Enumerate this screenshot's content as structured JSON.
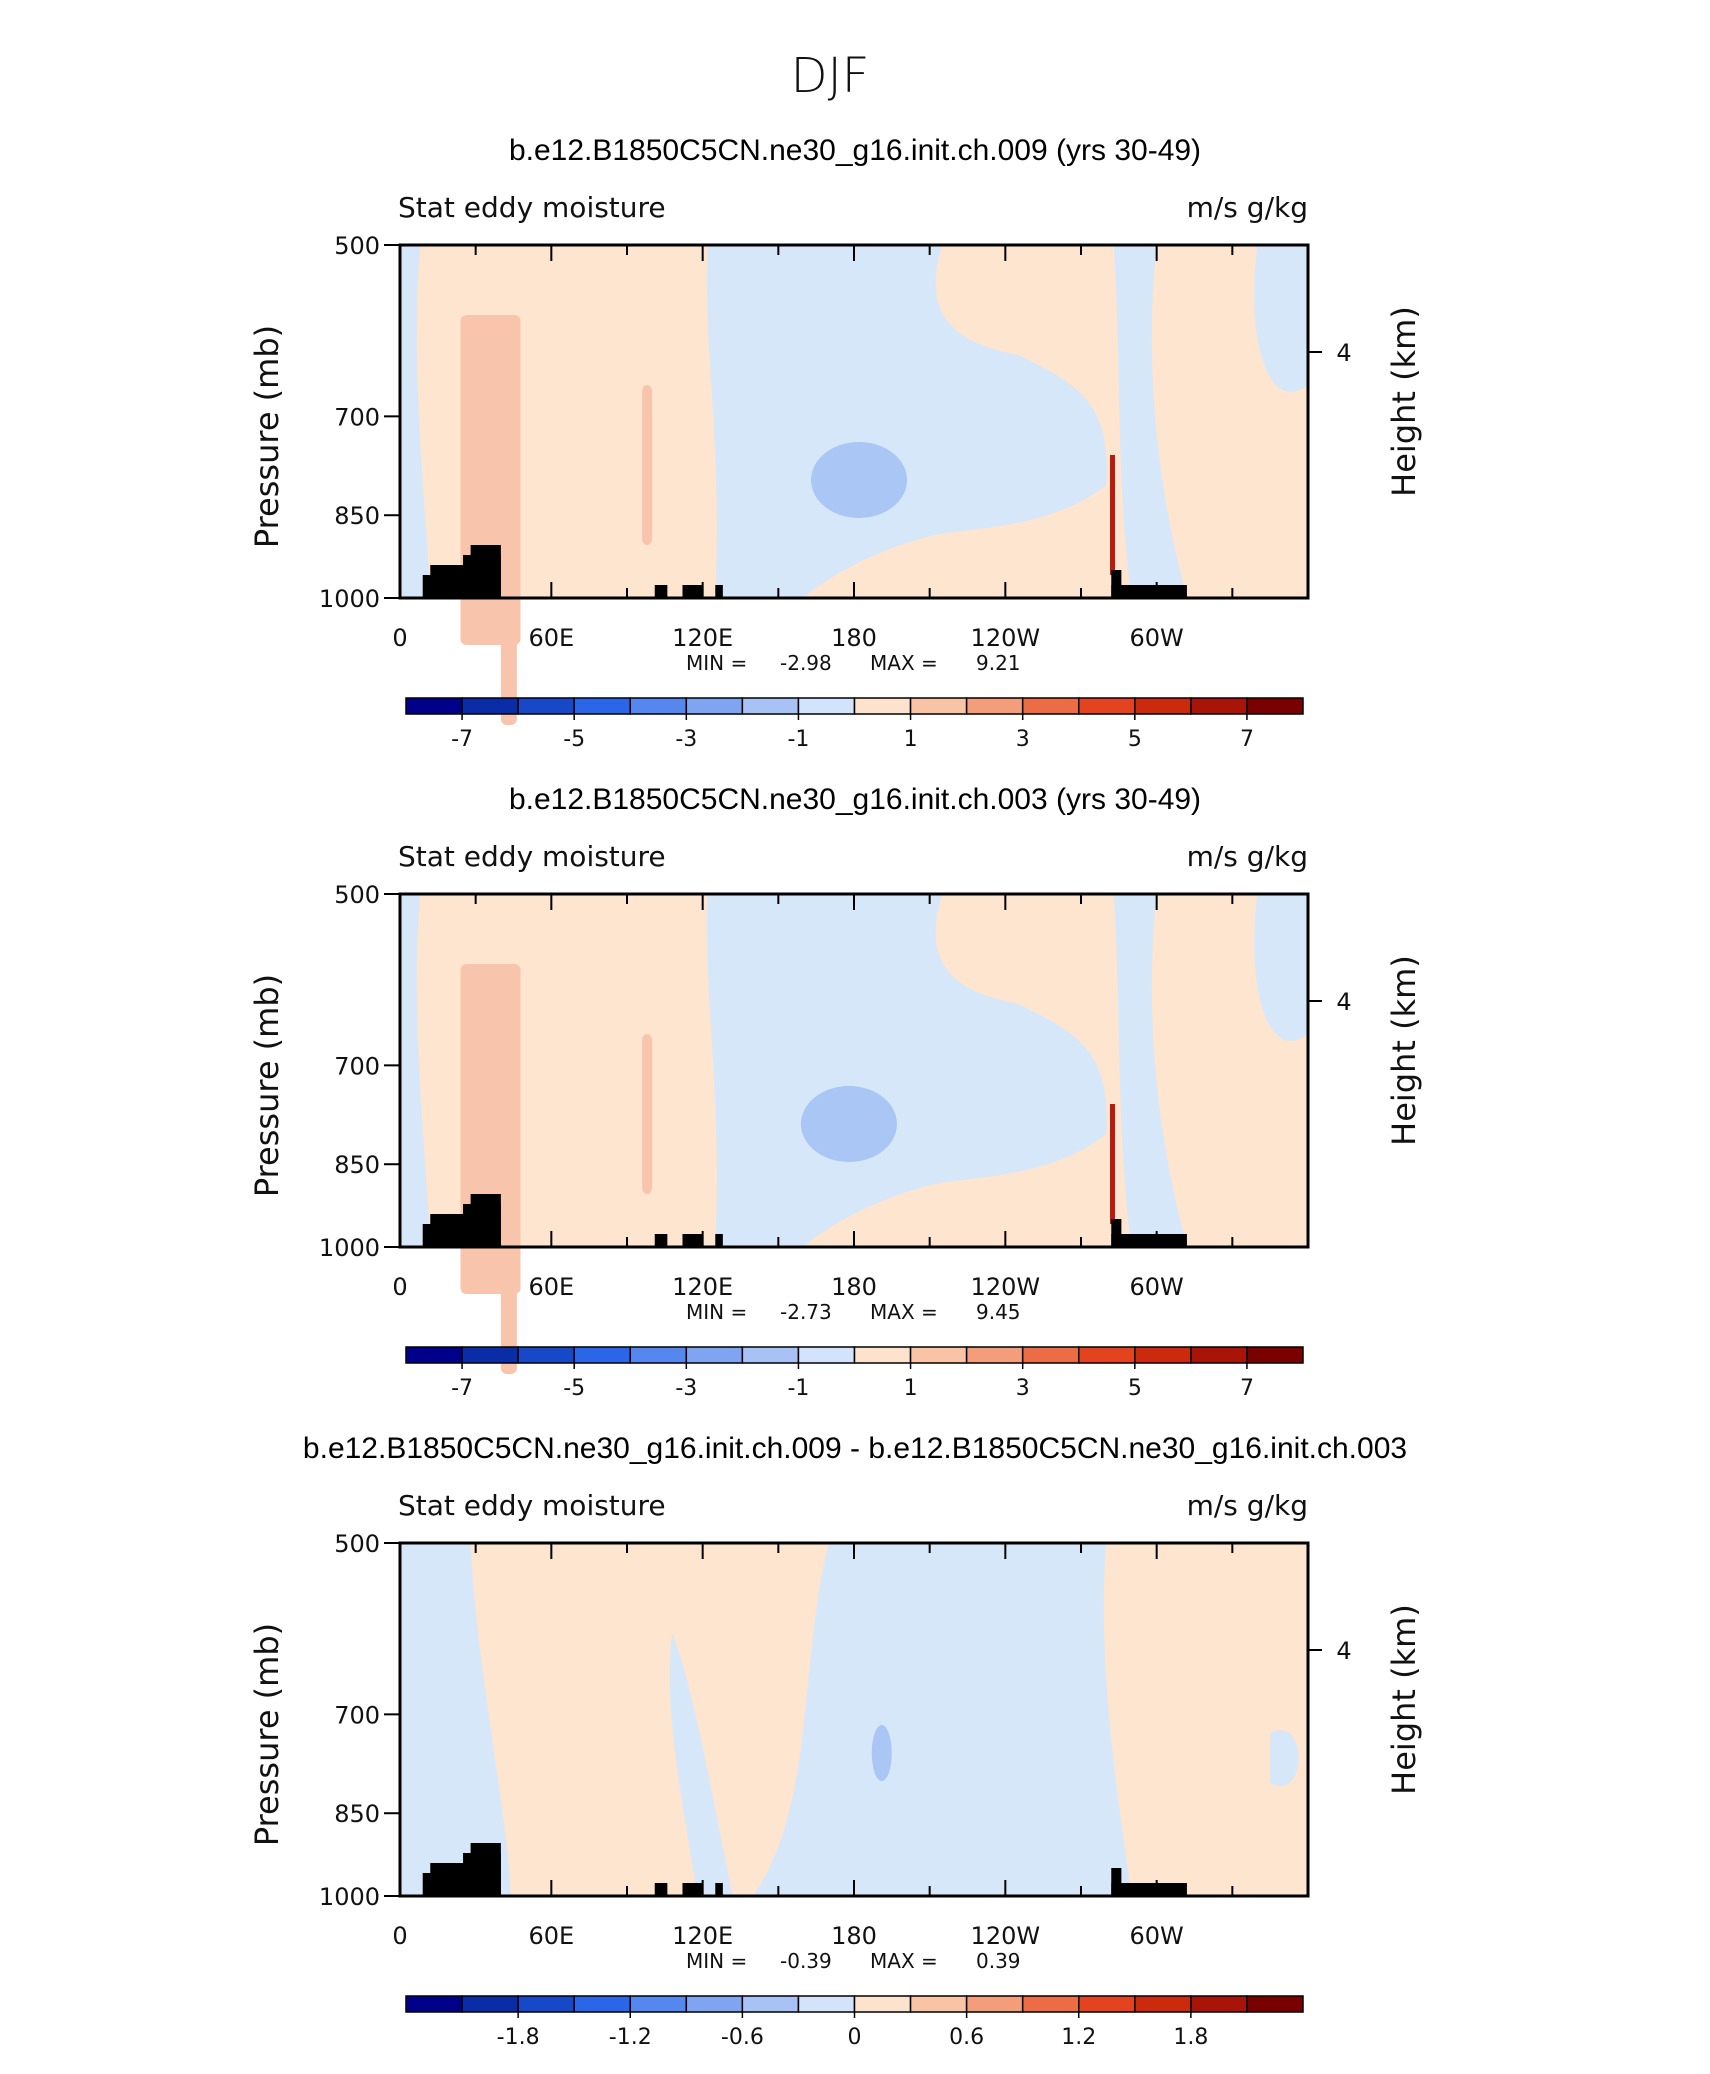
{
  "figure_title": "DJF",
  "chart_data": [
    {
      "type": "heatmap",
      "title": "b.e12.B1850C5CN.ne30_g16.init.ch.009 (yrs 30-49)",
      "left_label": "Stat eddy moisture",
      "right_label": "m/s g/kg",
      "ylabel": "Pressure (mb)",
      "y2label": "Height (km)",
      "xticks": [
        "0",
        "60E",
        "120E",
        "180",
        "120W",
        "60W"
      ],
      "xlim": [
        0,
        360
      ],
      "yticks": [
        "500",
        "700",
        "850",
        "1000"
      ],
      "y2ticks": [
        "4"
      ],
      "ylim": [
        1000,
        500
      ],
      "stats": {
        "min_label": "MIN =",
        "min": "-2.98",
        "max_label": "MAX =",
        "max": "9.21"
      },
      "colorbar": {
        "labels": [
          "-7",
          "-5",
          "-3",
          "-1",
          "1",
          "3",
          "5",
          "7"
        ],
        "levels": [
          -8,
          -7,
          -6,
          -5,
          -4,
          -3,
          -2,
          -1,
          0,
          1,
          2,
          3,
          4,
          5,
          6,
          7,
          8
        ]
      },
      "regions": [
        {
          "name": "weak-negative",
          "value": -0.5,
          "lon": [
            120,
            215
          ],
          "p": [
            500,
            1000
          ]
        },
        {
          "name": "weak-positive",
          "value": 0.5,
          "lon": [
            0,
            120
          ],
          "p": [
            500,
            1000
          ]
        },
        {
          "name": "moderate-negative-core",
          "value": -1.5,
          "lon": [
            165,
            205
          ],
          "p": [
            740,
            830
          ]
        },
        {
          "name": "weak-positive",
          "value": 0.5,
          "lon": [
            210,
            280
          ],
          "p": [
            500,
            600
          ]
        },
        {
          "name": "weak-positive",
          "value": 0.5,
          "lon": [
            275,
            360
          ],
          "p": [
            500,
            1000
          ]
        },
        {
          "name": "strong-positive-spike",
          "value": 9.21,
          "lon": [
            281,
            283
          ],
          "p": [
            750,
            980
          ]
        }
      ]
    },
    {
      "type": "heatmap",
      "title": "b.e12.B1850C5CN.ne30_g16.init.ch.003 (yrs 30-49)",
      "left_label": "Stat eddy moisture",
      "right_label": "m/s g/kg",
      "ylabel": "Pressure (mb)",
      "y2label": "Height (km)",
      "xticks": [
        "0",
        "60E",
        "120E",
        "180",
        "120W",
        "60W"
      ],
      "xlim": [
        0,
        360
      ],
      "yticks": [
        "500",
        "700",
        "850",
        "1000"
      ],
      "y2ticks": [
        "4"
      ],
      "ylim": [
        1000,
        500
      ],
      "stats": {
        "min_label": "MIN =",
        "min": "-2.73",
        "max_label": "MAX =",
        "max": "9.45"
      },
      "colorbar": {
        "labels": [
          "-7",
          "-5",
          "-3",
          "-1",
          "1",
          "3",
          "5",
          "7"
        ],
        "levels": [
          -8,
          -7,
          -6,
          -5,
          -4,
          -3,
          -2,
          -1,
          0,
          1,
          2,
          3,
          4,
          5,
          6,
          7,
          8
        ]
      },
      "regions": [
        {
          "name": "weak-negative",
          "value": -0.5,
          "lon": [
            120,
            215
          ],
          "p": [
            500,
            1000
          ]
        },
        {
          "name": "weak-positive",
          "value": 0.5,
          "lon": [
            0,
            120
          ],
          "p": [
            500,
            1000
          ]
        },
        {
          "name": "moderate-negative-core",
          "value": -1.5,
          "lon": [
            160,
            200
          ],
          "p": [
            740,
            830
          ]
        },
        {
          "name": "weak-positive",
          "value": 0.5,
          "lon": [
            210,
            280
          ],
          "p": [
            500,
            600
          ]
        },
        {
          "name": "weak-positive",
          "value": 0.5,
          "lon": [
            275,
            360
          ],
          "p": [
            500,
            1000
          ]
        },
        {
          "name": "strong-positive-spike",
          "value": 9.45,
          "lon": [
            281,
            283
          ],
          "p": [
            750,
            980
          ]
        }
      ]
    },
    {
      "type": "heatmap",
      "title": "b.e12.B1850C5CN.ne30_g16.init.ch.009 - b.e12.B1850C5CN.ne30_g16.init.ch.003",
      "left_label": "Stat eddy moisture",
      "right_label": "m/s g/kg",
      "ylabel": "Pressure (mb)",
      "y2label": "Height (km)",
      "xticks": [
        "0",
        "60E",
        "120E",
        "180",
        "120W",
        "60W"
      ],
      "xlim": [
        0,
        360
      ],
      "yticks": [
        "500",
        "700",
        "850",
        "1000"
      ],
      "y2ticks": [
        "4"
      ],
      "ylim": [
        1000,
        500
      ],
      "stats": {
        "min_label": "MIN =",
        "min": "-0.39",
        "max_label": "MAX =",
        "max": "0.39"
      },
      "colorbar": {
        "labels": [
          "-1.8",
          "-1.2",
          "-0.6",
          "0",
          "0.6",
          "1.2",
          "1.8"
        ],
        "levels": [
          -2.4,
          -2.1,
          -1.8,
          -1.5,
          -1.2,
          -0.9,
          -0.6,
          -0.3,
          0,
          0.3,
          0.6,
          0.9,
          1.2,
          1.5,
          1.8,
          2.1,
          2.4
        ]
      },
      "regions": [
        {
          "name": "weak-positive",
          "value": 0.15,
          "lon": [
            40,
            170
          ],
          "p": [
            500,
            1000
          ]
        },
        {
          "name": "weak-negative",
          "value": -0.15,
          "lon": [
            0,
            40
          ],
          "p": [
            500,
            1000
          ]
        },
        {
          "name": "weak-negative",
          "value": -0.15,
          "lon": [
            170,
            280
          ],
          "p": [
            500,
            1000
          ]
        },
        {
          "name": "weak-positive",
          "value": 0.15,
          "lon": [
            280,
            360
          ],
          "p": [
            500,
            1000
          ]
        }
      ]
    }
  ],
  "palette": [
    "#00008b",
    "#0a2ca6",
    "#1648c8",
    "#2b66e8",
    "#5587ee",
    "#7fa5f2",
    "#a8c2f6",
    "#d3e3fb",
    "#fde3cd",
    "#f9c3a6",
    "#f39d7a",
    "#ec6c45",
    "#e3441f",
    "#cc2a0d",
    "#a81508",
    "#7a0000"
  ],
  "fill_colors": {
    "weak_negative": "#d6e7fa",
    "moderate_negative": "#aac6f4",
    "weak_positive": "#fde5d0",
    "moderate_positive": "#f8c5ac",
    "spike": "#b81c10",
    "land": "#000000"
  }
}
